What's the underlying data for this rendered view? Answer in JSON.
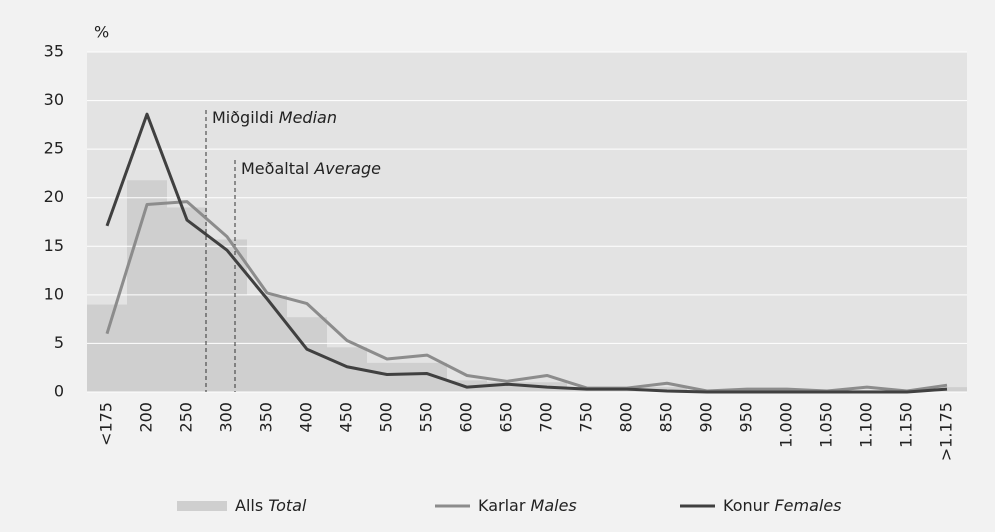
{
  "chart_data": {
    "type": "bar",
    "y_label": "%",
    "categories": [
      "<175",
      "200",
      "250",
      "300",
      "350",
      "400",
      "450",
      "500",
      "550",
      "600",
      "650",
      "700",
      "750",
      "800",
      "850",
      "900",
      "950",
      "1.000",
      "1.050",
      "1.100",
      "1.150",
      ">1.175"
    ],
    "series": [
      {
        "name": "Alls",
        "name_en": "Total",
        "type": "bar",
        "color": "#cfcfcf",
        "values": [
          9,
          21.8,
          19,
          15.7,
          10,
          7.7,
          4.6,
          3,
          3,
          1.2,
          1,
          1,
          0.5,
          0.5,
          0.5,
          0.2,
          0.2,
          0.2,
          0.1,
          0.2,
          0.1,
          0.5
        ]
      },
      {
        "name": "Karlar",
        "name_en": "Males",
        "type": "line",
        "color": "#8c8c8c",
        "values": [
          6,
          19.3,
          19.6,
          16,
          10.2,
          9.1,
          5.3,
          3.4,
          3.8,
          1.7,
          1.1,
          1.7,
          0.4,
          0.4,
          0.9,
          0.1,
          0.3,
          0.3,
          0.1,
          0.5,
          0.1,
          0.7
        ]
      },
      {
        "name": "Konur",
        "name_en": "Females",
        "type": "line",
        "color": "#404040",
        "values": [
          17.1,
          28.6,
          17.7,
          14.6,
          9.6,
          4.4,
          2.6,
          1.8,
          1.9,
          0.5,
          0.8,
          0.5,
          0.3,
          0.3,
          0.1,
          0,
          0,
          0,
          0,
          0,
          0,
          0.3
        ]
      }
    ],
    "annotations": [
      {
        "text": "Miðgildi",
        "text_en": "Median"
      },
      {
        "text": "Meðaltal",
        "text_en": "Average"
      }
    ],
    "ylim": [
      0,
      35
    ],
    "yticks": [
      0,
      5,
      10,
      15,
      20,
      25,
      30,
      35
    ],
    "grid": true,
    "legend": "bottom"
  }
}
